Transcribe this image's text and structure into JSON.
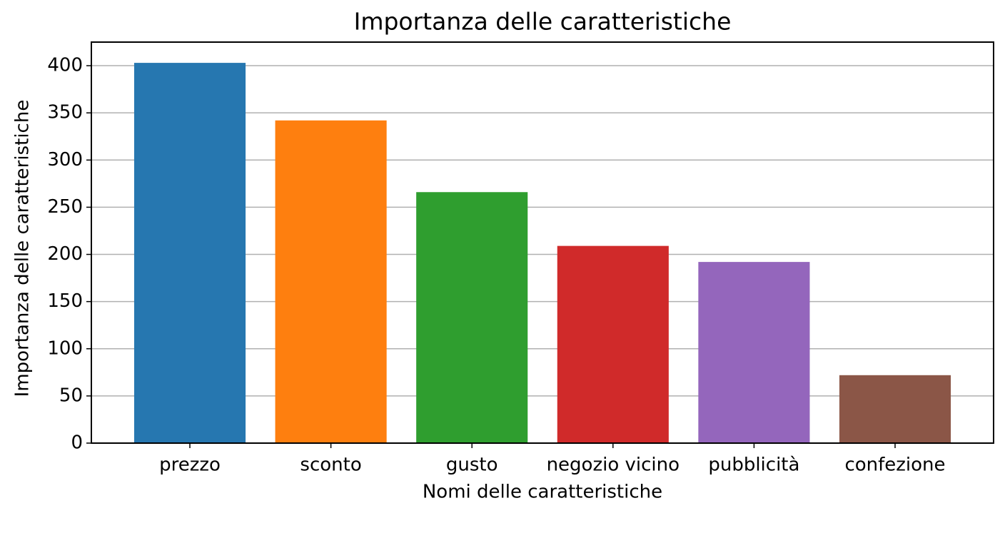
{
  "chart_data": {
    "type": "bar",
    "title": "Importanza delle caratteristiche",
    "x_label": "Nomi delle caratteristiche",
    "y_label": "Importanza delle caratteristiche",
    "categories": [
      "prezzo",
      "sconto",
      "gusto",
      "negozio vicino",
      "pubblicità",
      "confezione"
    ],
    "values": [
      403,
      342,
      266,
      209,
      192,
      72
    ],
    "colors": [
      "#2677b0",
      "#fe7f0f",
      "#2f9e2f",
      "#d02a2a",
      "#9466bc",
      "#8b5647"
    ],
    "ylim": [
      0,
      425
    ],
    "yticks": [
      0,
      50,
      100,
      150,
      200,
      250,
      300,
      350,
      400
    ],
    "grid": true
  }
}
